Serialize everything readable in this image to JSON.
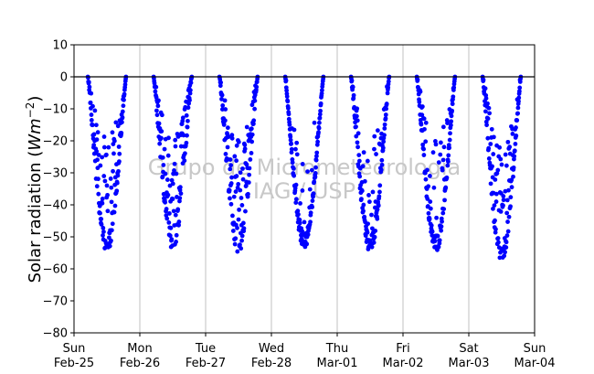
{
  "chart_data": {
    "type": "scatter",
    "title": "",
    "xlabel": "",
    "ylabel_parts": [
      "Solar radiation (",
      "Wm",
      "−2",
      ")"
    ],
    "ylim": [
      -80,
      10
    ],
    "yticks": [
      10,
      0,
      -10,
      -20,
      -30,
      -40,
      -50,
      -60,
      -70,
      -80
    ],
    "xlim": [
      0,
      7
    ],
    "xticks": [
      {
        "x": 0,
        "day": "Sun",
        "date": "Feb-25"
      },
      {
        "x": 1,
        "day": "Mon",
        "date": "Feb-26"
      },
      {
        "x": 2,
        "day": "Tue",
        "date": "Feb-27"
      },
      {
        "x": 3,
        "day": "Wed",
        "date": "Feb-28"
      },
      {
        "x": 4,
        "day": "Thu",
        "date": "Mar-01"
      },
      {
        "x": 5,
        "day": "Fri",
        "date": "Mar-02"
      },
      {
        "x": 6,
        "day": "Sat",
        "date": "Mar-03"
      },
      {
        "x": 7,
        "day": "Sun",
        "date": "Mar-04"
      }
    ],
    "reference_line": 0,
    "grid": "vertical",
    "marker_color": "#0000ff",
    "watermark": [
      "Grupo de Micrometeorologia",
      "IAG / USP"
    ],
    "days": [
      {
        "start": 0.21,
        "end": 0.79,
        "min": -55,
        "scatter": 0.55,
        "seed": 11
      },
      {
        "start": 1.21,
        "end": 1.79,
        "min": -54,
        "scatter": 0.75,
        "seed": 23
      },
      {
        "start": 2.21,
        "end": 2.79,
        "min": -55,
        "scatter": 0.75,
        "seed": 37
      },
      {
        "start": 3.21,
        "end": 3.79,
        "min": -54,
        "scatter": 0.15,
        "seed": 41
      },
      {
        "start": 4.21,
        "end": 4.79,
        "min": -55,
        "scatter": 0.4,
        "seed": 53
      },
      {
        "start": 5.21,
        "end": 5.79,
        "min": -55,
        "scatter": 0.35,
        "seed": 67
      },
      {
        "start": 6.21,
        "end": 6.79,
        "min": -58,
        "scatter": 0.55,
        "seed": 79
      }
    ]
  }
}
